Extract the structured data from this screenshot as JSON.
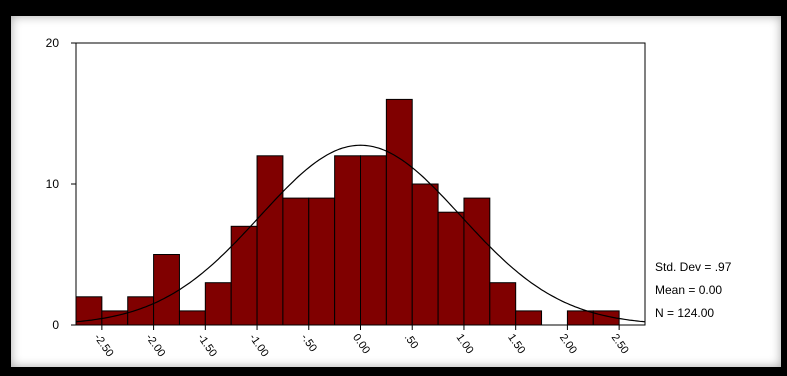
{
  "chart_data": {
    "type": "bar",
    "bin_width": 0.25,
    "bin_centers": [
      -2.625,
      -2.375,
      -2.125,
      -1.875,
      -1.625,
      -1.375,
      -1.125,
      -0.875,
      -0.625,
      -0.375,
      -0.125,
      0.125,
      0.375,
      0.625,
      0.875,
      1.125,
      1.375,
      1.625,
      1.875,
      2.125,
      2.375,
      2.625
    ],
    "values": [
      2,
      1,
      2,
      5,
      1,
      3,
      7,
      12,
      9,
      9,
      12,
      12,
      16,
      10,
      8,
      9,
      3,
      1,
      0,
      1,
      1,
      0
    ],
    "xlim": [
      -2.75,
      2.75
    ],
    "ylim": [
      0,
      20
    ],
    "y_ticks": [
      "0",
      "10",
      "20"
    ],
    "x_ticks": [
      {
        "value": -2.5,
        "label": "-2.50"
      },
      {
        "value": -2.0,
        "label": "-2.00"
      },
      {
        "value": -1.5,
        "label": "-1.50"
      },
      {
        "value": -1.0,
        "label": "-1.00"
      },
      {
        "value": -0.5,
        "label": "-.50"
      },
      {
        "value": 0.0,
        "label": "0.00"
      },
      {
        "value": 0.5,
        "label": ".50"
      },
      {
        "value": 1.0,
        "label": "1.00"
      },
      {
        "value": 1.5,
        "label": "1.50"
      },
      {
        "value": 2.0,
        "label": "2.00"
      },
      {
        "value": 2.5,
        "label": "2.50"
      }
    ],
    "normal_curve": {
      "mean": 0.0,
      "sd": 0.97,
      "n": 124
    },
    "colors": {
      "bar": "#800000",
      "bar_edge": "#000000",
      "curve": "#000000"
    }
  },
  "stats": {
    "std_dev": "Std. Dev = .97",
    "mean": "Mean = 0.00",
    "n": "N = 124.00"
  }
}
